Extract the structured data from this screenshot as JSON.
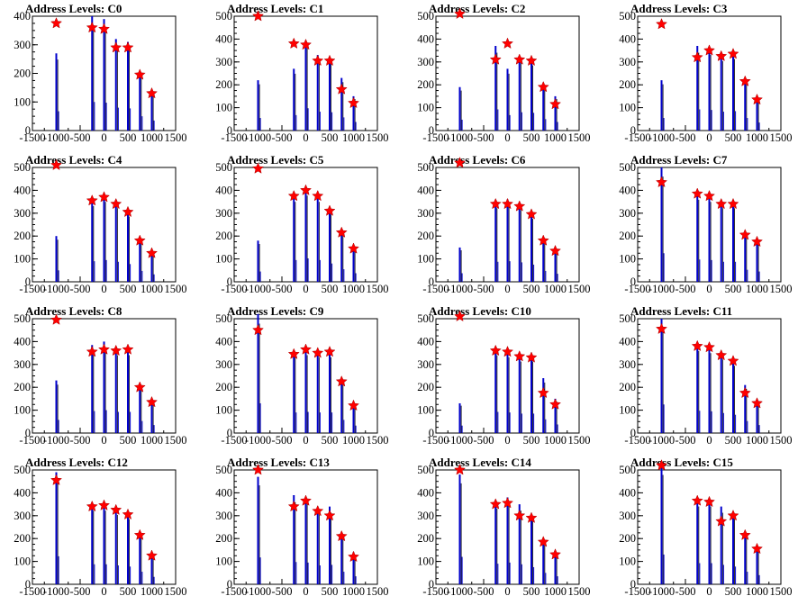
{
  "figure": {
    "background": "#ffffff",
    "histogram_color": "#0000cc",
    "fine_structure_color": "#000000",
    "marker_color": "#ff0000",
    "marker_shape": "star"
  },
  "chart_data": [
    {
      "type": "histogram-with-peaks",
      "title": "Address Levels: C0",
      "xlim": [
        -1500,
        1500
      ],
      "ylim": [
        0,
        400
      ],
      "xticks": [
        "-1500",
        "-1000",
        "-500",
        "0",
        "500",
        "1000",
        "1500"
      ],
      "yticks": [
        "0",
        "100",
        "200",
        "300",
        "400"
      ],
      "peaks": [
        {
          "x": -1000,
          "y": 375,
          "bar": 270
        },
        {
          "x": -250,
          "y": 360,
          "bar": 400
        },
        {
          "x": 0,
          "y": 355,
          "bar": 390
        },
        {
          "x": 250,
          "y": 290,
          "bar": 320
        },
        {
          "x": 500,
          "y": 290,
          "bar": 310
        },
        {
          "x": 750,
          "y": 195,
          "bar": 200
        },
        {
          "x": 1000,
          "y": 130,
          "bar": 140
        }
      ]
    },
    {
      "type": "histogram-with-peaks",
      "title": "Address Levels: C1",
      "xlim": [
        -1500,
        1500
      ],
      "ylim": [
        0,
        500
      ],
      "xticks": [
        "-1500",
        "-1000",
        "-500",
        "0",
        "500",
        "1000",
        "1500"
      ],
      "yticks": [
        "0",
        "100",
        "200",
        "300",
        "400",
        "500"
      ],
      "peaks": [
        {
          "x": -1000,
          "y": 500,
          "bar": 220
        },
        {
          "x": -250,
          "y": 380,
          "bar": 270
        },
        {
          "x": 0,
          "y": 375,
          "bar": 390
        },
        {
          "x": 250,
          "y": 305,
          "bar": 330
        },
        {
          "x": 500,
          "y": 305,
          "bar": 320
        },
        {
          "x": 750,
          "y": 180,
          "bar": 230
        },
        {
          "x": 1000,
          "y": 120,
          "bar": 150
        }
      ]
    },
    {
      "type": "histogram-with-peaks",
      "title": "Address Levels: C2",
      "xlim": [
        -1500,
        1500
      ],
      "ylim": [
        0,
        500
      ],
      "xticks": [
        "-1500",
        "-1000",
        "-500",
        "0",
        "500",
        "1000",
        "1500"
      ],
      "yticks": [
        "0",
        "100",
        "200",
        "300",
        "400",
        "500"
      ],
      "peaks": [
        {
          "x": -1000,
          "y": 510,
          "bar": 190
        },
        {
          "x": -250,
          "y": 310,
          "bar": 370
        },
        {
          "x": 0,
          "y": 380,
          "bar": 270
        },
        {
          "x": 250,
          "y": 310,
          "bar": 320
        },
        {
          "x": 500,
          "y": 305,
          "bar": 310
        },
        {
          "x": 750,
          "y": 190,
          "bar": 200
        },
        {
          "x": 1000,
          "y": 115,
          "bar": 150
        }
      ]
    },
    {
      "type": "histogram-with-peaks",
      "title": "Address Levels: C3",
      "xlim": [
        -1500,
        1500
      ],
      "ylim": [
        0,
        500
      ],
      "xticks": [
        "-1500",
        "-1000",
        "-500",
        "0",
        "500",
        "1000",
        "1500"
      ],
      "yticks": [
        "0",
        "100",
        "200",
        "300",
        "400",
        "500"
      ],
      "peaks": [
        {
          "x": -1000,
          "y": 465,
          "bar": 220
        },
        {
          "x": -250,
          "y": 320,
          "bar": 370
        },
        {
          "x": 0,
          "y": 350,
          "bar": 360
        },
        {
          "x": 250,
          "y": 325,
          "bar": 330
        },
        {
          "x": 500,
          "y": 335,
          "bar": 340
        },
        {
          "x": 750,
          "y": 215,
          "bar": 220
        },
        {
          "x": 1000,
          "y": 135,
          "bar": 140
        }
      ]
    },
    {
      "type": "histogram-with-peaks",
      "title": "Address Levels: C4",
      "xlim": [
        -1500,
        1500
      ],
      "ylim": [
        0,
        500
      ],
      "xticks": [
        "-1500",
        "-1000",
        "-500",
        "0",
        "500",
        "1000",
        "1500"
      ],
      "yticks": [
        "0",
        "100",
        "200",
        "300",
        "400",
        "500"
      ],
      "peaks": [
        {
          "x": -1000,
          "y": 510,
          "bar": 200
        },
        {
          "x": -250,
          "y": 355,
          "bar": 360
        },
        {
          "x": 0,
          "y": 370,
          "bar": 380
        },
        {
          "x": 250,
          "y": 340,
          "bar": 350
        },
        {
          "x": 500,
          "y": 305,
          "bar": 310
        },
        {
          "x": 750,
          "y": 180,
          "bar": 190
        },
        {
          "x": 1000,
          "y": 125,
          "bar": 130
        }
      ]
    },
    {
      "type": "histogram-with-peaks",
      "title": "Address Levels: C5",
      "xlim": [
        -1500,
        1500
      ],
      "ylim": [
        0,
        500
      ],
      "xticks": [
        "-1500",
        "-1000",
        "-500",
        "0",
        "500",
        "1000",
        "1500"
      ],
      "yticks": [
        "0",
        "100",
        "200",
        "300",
        "400",
        "500"
      ],
      "peaks": [
        {
          "x": -1000,
          "y": 495,
          "bar": 180
        },
        {
          "x": -250,
          "y": 375,
          "bar": 380
        },
        {
          "x": 0,
          "y": 400,
          "bar": 410
        },
        {
          "x": 250,
          "y": 375,
          "bar": 380
        },
        {
          "x": 500,
          "y": 310,
          "bar": 320
        },
        {
          "x": 750,
          "y": 215,
          "bar": 220
        },
        {
          "x": 1000,
          "y": 145,
          "bar": 150
        }
      ]
    },
    {
      "type": "histogram-with-peaks",
      "title": "Address Levels: C6",
      "xlim": [
        -1500,
        1500
      ],
      "ylim": [
        0,
        500
      ],
      "xticks": [
        "-1500",
        "-1000",
        "-500",
        "0",
        "500",
        "1000",
        "1500"
      ],
      "yticks": [
        "0",
        "100",
        "200",
        "300",
        "400",
        "500"
      ],
      "peaks": [
        {
          "x": -1000,
          "y": 520,
          "bar": 150
        },
        {
          "x": -250,
          "y": 340,
          "bar": 350
        },
        {
          "x": 0,
          "y": 340,
          "bar": 360
        },
        {
          "x": 250,
          "y": 330,
          "bar": 340
        },
        {
          "x": 500,
          "y": 295,
          "bar": 300
        },
        {
          "x": 750,
          "y": 180,
          "bar": 190
        },
        {
          "x": 1000,
          "y": 135,
          "bar": 140
        }
      ]
    },
    {
      "type": "histogram-with-peaks",
      "title": "Address Levels: C7",
      "xlim": [
        -1500,
        1500
      ],
      "ylim": [
        0,
        500
      ],
      "xticks": [
        "-1500",
        "-1000",
        "-500",
        "0",
        "500",
        "1000",
        "1500"
      ],
      "yticks": [
        "0",
        "100",
        "200",
        "300",
        "400",
        "500"
      ],
      "peaks": [
        {
          "x": -1000,
          "y": 435,
          "bar": 500
        },
        {
          "x": -250,
          "y": 385,
          "bar": 390
        },
        {
          "x": 0,
          "y": 375,
          "bar": 380
        },
        {
          "x": 250,
          "y": 340,
          "bar": 350
        },
        {
          "x": 500,
          "y": 340,
          "bar": 350
        },
        {
          "x": 750,
          "y": 205,
          "bar": 210
        },
        {
          "x": 1000,
          "y": 175,
          "bar": 180
        }
      ]
    },
    {
      "type": "histogram-with-peaks",
      "title": "Address Levels: C8",
      "xlim": [
        -1500,
        1500
      ],
      "ylim": [
        0,
        500
      ],
      "xticks": [
        "-1500",
        "-1000",
        "-500",
        "0",
        "500",
        "1000",
        "1500"
      ],
      "yticks": [
        "0",
        "100",
        "200",
        "300",
        "400",
        "500"
      ],
      "peaks": [
        {
          "x": -1000,
          "y": 495,
          "bar": 230
        },
        {
          "x": -250,
          "y": 355,
          "bar": 385
        },
        {
          "x": 0,
          "y": 365,
          "bar": 400
        },
        {
          "x": 250,
          "y": 360,
          "bar": 370
        },
        {
          "x": 500,
          "y": 365,
          "bar": 370
        },
        {
          "x": 750,
          "y": 200,
          "bar": 210
        },
        {
          "x": 1000,
          "y": 135,
          "bar": 140
        }
      ]
    },
    {
      "type": "histogram-with-peaks",
      "title": "Address Levels: C9",
      "xlim": [
        -1500,
        1500
      ],
      "ylim": [
        0,
        500
      ],
      "xticks": [
        "-1500",
        "-1000",
        "-500",
        "0",
        "500",
        "1000",
        "1500"
      ],
      "yticks": [
        "0",
        "100",
        "200",
        "300",
        "400",
        "500"
      ],
      "peaks": [
        {
          "x": -1000,
          "y": 450,
          "bar": 520
        },
        {
          "x": -250,
          "y": 345,
          "bar": 360
        },
        {
          "x": 0,
          "y": 365,
          "bar": 370
        },
        {
          "x": 250,
          "y": 350,
          "bar": 360
        },
        {
          "x": 500,
          "y": 355,
          "bar": 360
        },
        {
          "x": 750,
          "y": 225,
          "bar": 230
        },
        {
          "x": 1000,
          "y": 120,
          "bar": 130
        }
      ]
    },
    {
      "type": "histogram-with-peaks",
      "title": "Address Levels: C10",
      "xlim": [
        -1500,
        1500
      ],
      "ylim": [
        0,
        500
      ],
      "xticks": [
        "-1500",
        "-1000",
        "-500",
        "0",
        "500",
        "1000",
        "1500"
      ],
      "yticks": [
        "0",
        "100",
        "200",
        "300",
        "400",
        "500"
      ],
      "peaks": [
        {
          "x": -1000,
          "y": 510,
          "bar": 130
        },
        {
          "x": -250,
          "y": 360,
          "bar": 370
        },
        {
          "x": 0,
          "y": 355,
          "bar": 360
        },
        {
          "x": 250,
          "y": 335,
          "bar": 340
        },
        {
          "x": 500,
          "y": 330,
          "bar": 340
        },
        {
          "x": 750,
          "y": 175,
          "bar": 240
        },
        {
          "x": 1000,
          "y": 125,
          "bar": 150
        }
      ]
    },
    {
      "type": "histogram-with-peaks",
      "title": "Address Levels: C11",
      "xlim": [
        -1500,
        1500
      ],
      "ylim": [
        0,
        500
      ],
      "xticks": [
        "-1500",
        "-1000",
        "-500",
        "0",
        "500",
        "1000",
        "1500"
      ],
      "yticks": [
        "0",
        "100",
        "200",
        "300",
        "400",
        "500"
      ],
      "peaks": [
        {
          "x": -1000,
          "y": 455,
          "bar": 500
        },
        {
          "x": -250,
          "y": 380,
          "bar": 390
        },
        {
          "x": 0,
          "y": 375,
          "bar": 380
        },
        {
          "x": 250,
          "y": 340,
          "bar": 350
        },
        {
          "x": 500,
          "y": 315,
          "bar": 320
        },
        {
          "x": 750,
          "y": 175,
          "bar": 210
        },
        {
          "x": 1000,
          "y": 130,
          "bar": 140
        }
      ]
    },
    {
      "type": "histogram-with-peaks",
      "title": "Address Levels: C12",
      "xlim": [
        -1500,
        1500
      ],
      "ylim": [
        0,
        500
      ],
      "xticks": [
        "-1500",
        "-1000",
        "-500",
        "0",
        "500",
        "1000",
        "1500"
      ],
      "yticks": [
        "0",
        "100",
        "200",
        "300",
        "400",
        "500"
      ],
      "peaks": [
        {
          "x": -1000,
          "y": 455,
          "bar": 490
        },
        {
          "x": -250,
          "y": 340,
          "bar": 350
        },
        {
          "x": 0,
          "y": 345,
          "bar": 350
        },
        {
          "x": 250,
          "y": 325,
          "bar": 330
        },
        {
          "x": 500,
          "y": 305,
          "bar": 310
        },
        {
          "x": 750,
          "y": 215,
          "bar": 220
        },
        {
          "x": 1000,
          "y": 125,
          "bar": 130
        }
      ]
    },
    {
      "type": "histogram-with-peaks",
      "title": "Address Levels: C13",
      "xlim": [
        -1500,
        1500
      ],
      "ylim": [
        0,
        500
      ],
      "xticks": [
        "-1500",
        "-1000",
        "-500",
        "0",
        "500",
        "1000",
        "1500"
      ],
      "yticks": [
        "0",
        "100",
        "200",
        "300",
        "400",
        "500"
      ],
      "peaks": [
        {
          "x": -1000,
          "y": 500,
          "bar": 470
        },
        {
          "x": -250,
          "y": 340,
          "bar": 390
        },
        {
          "x": 0,
          "y": 365,
          "bar": 380
        },
        {
          "x": 250,
          "y": 320,
          "bar": 330
        },
        {
          "x": 500,
          "y": 300,
          "bar": 340
        },
        {
          "x": 750,
          "y": 210,
          "bar": 220
        },
        {
          "x": 1000,
          "y": 120,
          "bar": 140
        }
      ]
    },
    {
      "type": "histogram-with-peaks",
      "title": "Address Levels: C14",
      "xlim": [
        -1500,
        1500
      ],
      "ylim": [
        0,
        500
      ],
      "xticks": [
        "-1500",
        "-1000",
        "-500",
        "0",
        "500",
        "1000",
        "1500"
      ],
      "yticks": [
        "0",
        "100",
        "200",
        "300",
        "400",
        "500"
      ],
      "peaks": [
        {
          "x": -1000,
          "y": 500,
          "bar": 480
        },
        {
          "x": -250,
          "y": 350,
          "bar": 360
        },
        {
          "x": 0,
          "y": 355,
          "bar": 380
        },
        {
          "x": 250,
          "y": 300,
          "bar": 350
        },
        {
          "x": 500,
          "y": 290,
          "bar": 300
        },
        {
          "x": 750,
          "y": 185,
          "bar": 200
        },
        {
          "x": 1000,
          "y": 130,
          "bar": 140
        }
      ]
    },
    {
      "type": "histogram-with-peaks",
      "title": "Address Levels: C15",
      "xlim": [
        -1500,
        1500
      ],
      "ylim": [
        0,
        500
      ],
      "xticks": [
        "-1500",
        "-1000",
        "-500",
        "0",
        "500",
        "1000",
        "1500"
      ],
      "yticks": [
        "0",
        "100",
        "200",
        "300",
        "400",
        "500"
      ],
      "peaks": [
        {
          "x": -1000,
          "y": 520,
          "bar": 520
        },
        {
          "x": -250,
          "y": 365,
          "bar": 370
        },
        {
          "x": 0,
          "y": 360,
          "bar": 370
        },
        {
          "x": 250,
          "y": 275,
          "bar": 340
        },
        {
          "x": 500,
          "y": 300,
          "bar": 310
        },
        {
          "x": 750,
          "y": 215,
          "bar": 220
        },
        {
          "x": 1000,
          "y": 155,
          "bar": 160
        }
      ]
    }
  ]
}
